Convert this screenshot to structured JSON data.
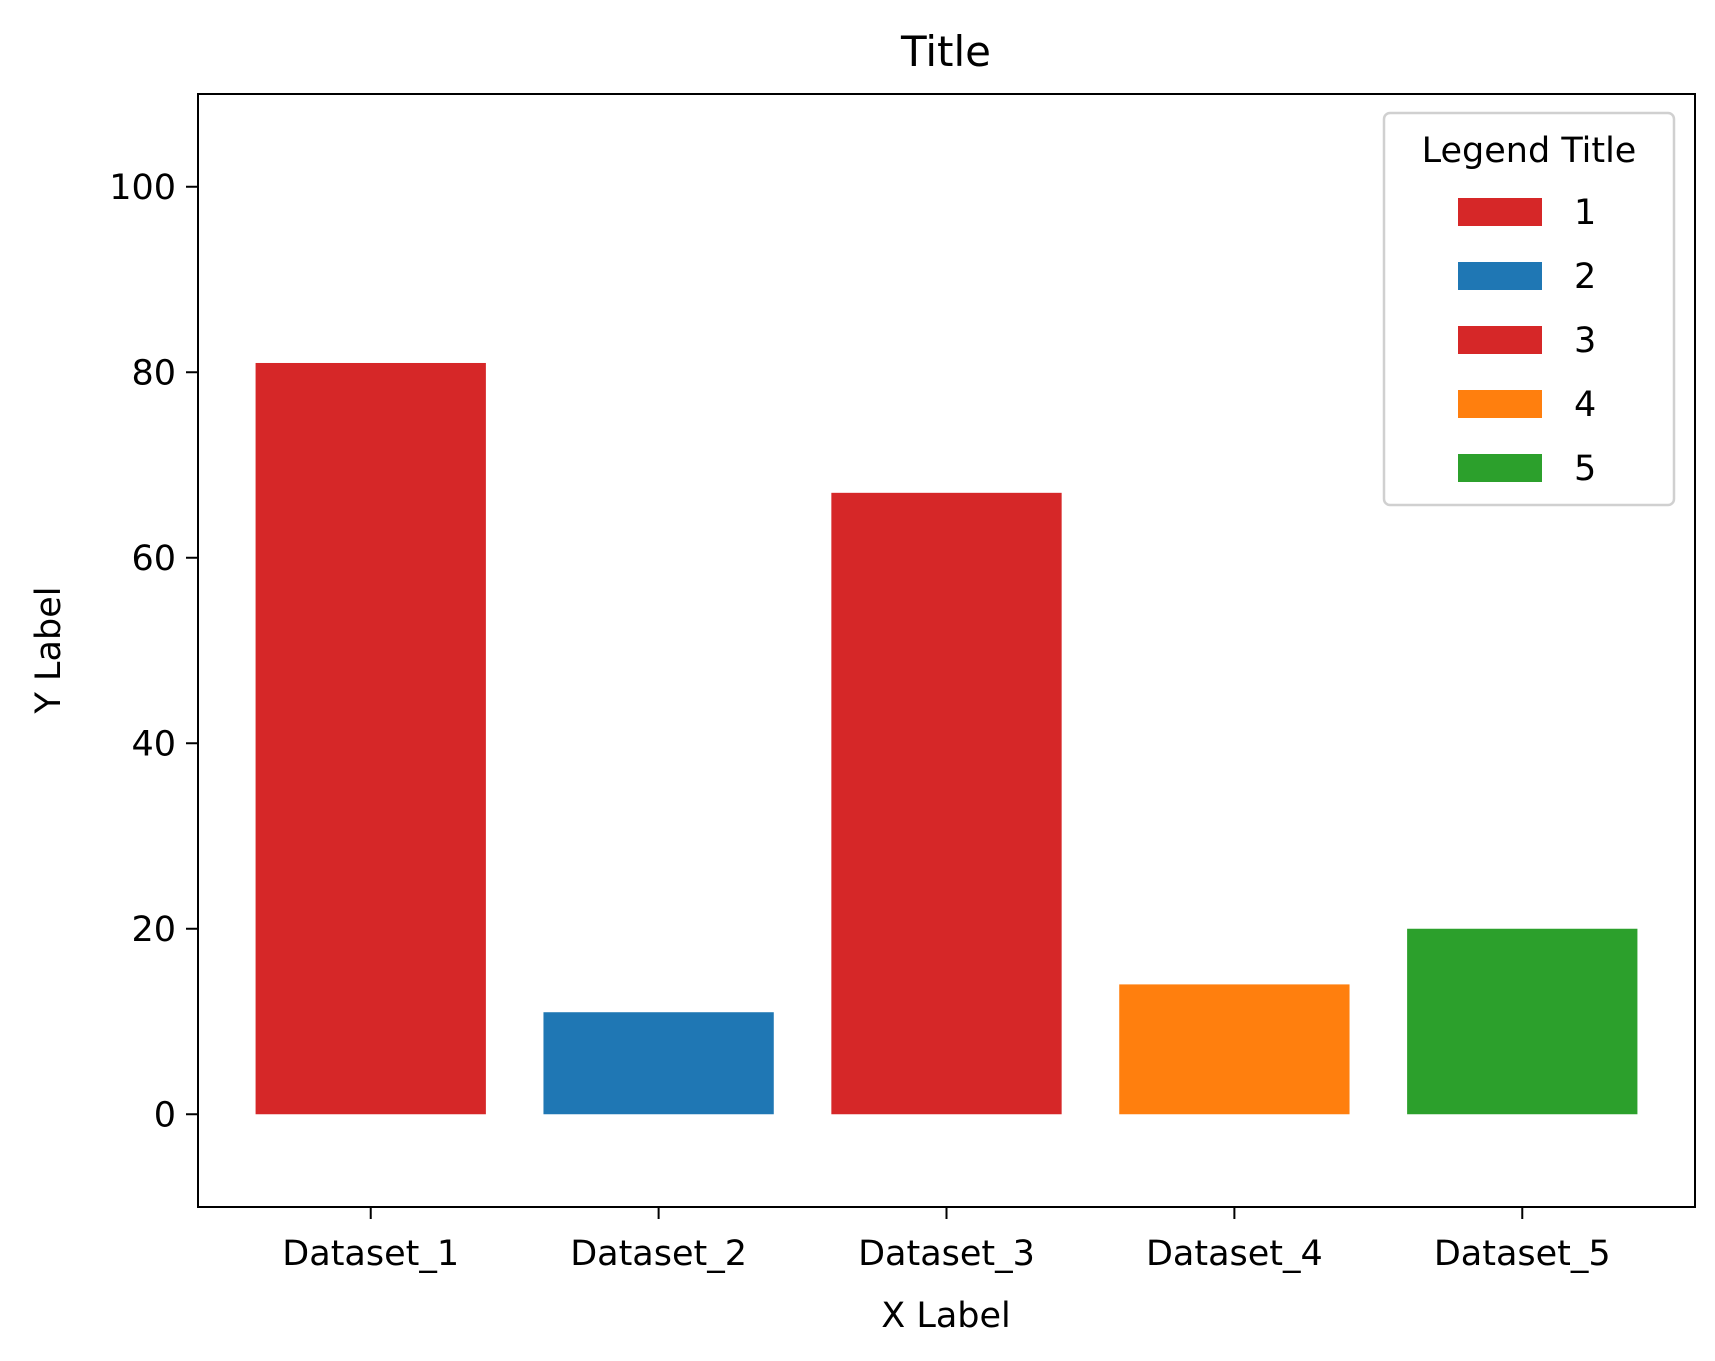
{
  "chart_data": {
    "type": "bar",
    "title": "Title",
    "xlabel": "X Label",
    "ylabel": "Y Label",
    "categories": [
      "Dataset_1",
      "Dataset_2",
      "Dataset_3",
      "Dataset_4",
      "Dataset_5"
    ],
    "values": [
      81,
      11,
      67,
      14,
      20
    ],
    "bar_colors": [
      "#d62728",
      "#1f77b4",
      "#d62728",
      "#ff7f0e",
      "#2ca02c"
    ],
    "ylim": [
      -10,
      110
    ],
    "yticks": [
      0,
      20,
      40,
      60,
      80,
      100
    ],
    "grid": false,
    "legend": {
      "title": "Legend Title",
      "placement": "top-right",
      "entries": [
        {
          "label": "1",
          "color": "#d62728"
        },
        {
          "label": "2",
          "color": "#1f77b4"
        },
        {
          "label": "3",
          "color": "#d62728"
        },
        {
          "label": "4",
          "color": "#ff7f0e"
        },
        {
          "label": "5",
          "color": "#2ca02c"
        }
      ]
    }
  }
}
